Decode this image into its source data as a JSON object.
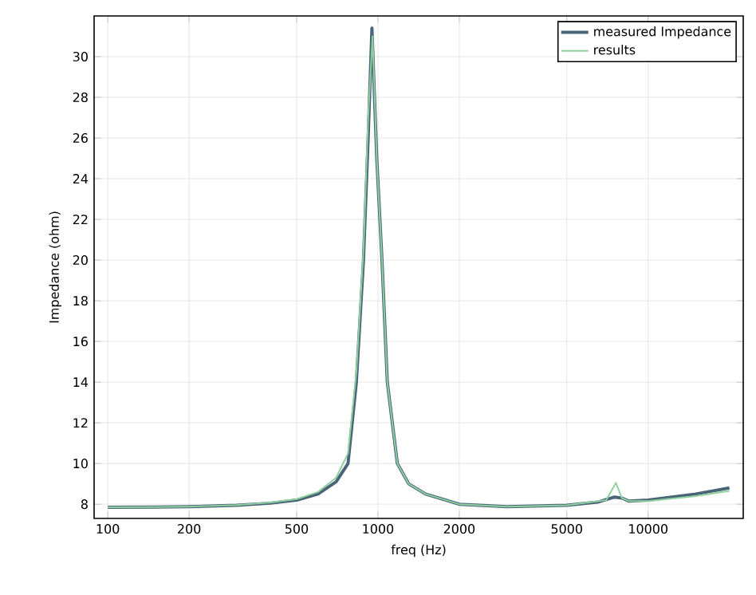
{
  "chart_data": {
    "type": "line",
    "xlabel": "freq (Hz)",
    "ylabel": "Impedance (ohm)",
    "log": "x",
    "xlim": [
      89,
      22500
    ],
    "ylim": [
      7.3,
      32
    ],
    "xticks": [
      100,
      200,
      500,
      1000,
      2000,
      5000,
      10000
    ],
    "yticks": [
      8,
      10,
      12,
      14,
      16,
      18,
      20,
      22,
      24,
      26,
      28,
      30
    ],
    "grid": true,
    "legend": "top right",
    "line_style": "solid",
    "marker": "none",
    "series": [
      {
        "name": "measured Impedance",
        "color": "#4a6578",
        "x": [
          100,
          150,
          200,
          300,
          400,
          500,
          600,
          700,
          775,
          832,
          884,
          920,
          950,
          990,
          1035,
          1083,
          1180,
          1300,
          1500,
          2000,
          3000,
          5000,
          6500,
          7500,
          8000,
          8500,
          10000,
          15000,
          20000
        ],
        "values": [
          7.85,
          7.86,
          7.88,
          7.95,
          8.05,
          8.2,
          8.5,
          9.1,
          10,
          14,
          20,
          26,
          31.4,
          25,
          20,
          14,
          10,
          9.0,
          8.5,
          8.0,
          7.88,
          7.95,
          8.1,
          8.35,
          8.3,
          8.15,
          8.2,
          8.5,
          8.8
        ]
      },
      {
        "name": "results",
        "color": "#8fd0a0",
        "x": [
          100,
          150,
          200,
          300,
          400,
          500,
          600,
          700,
          775,
          832,
          884,
          920,
          955,
          990,
          1035,
          1083,
          1180,
          1300,
          1500,
          2000,
          3000,
          5000,
          7000,
          7600,
          8000,
          8500,
          10000,
          15000,
          20000
        ],
        "values": [
          7.85,
          7.86,
          7.88,
          7.96,
          8.08,
          8.25,
          8.6,
          9.3,
          10.5,
          14.5,
          20.5,
          27,
          31.0,
          25,
          20,
          14,
          10,
          9.0,
          8.5,
          8.0,
          7.88,
          7.95,
          8.2,
          9.05,
          8.3,
          8.15,
          8.15,
          8.4,
          8.65
        ]
      }
    ]
  }
}
